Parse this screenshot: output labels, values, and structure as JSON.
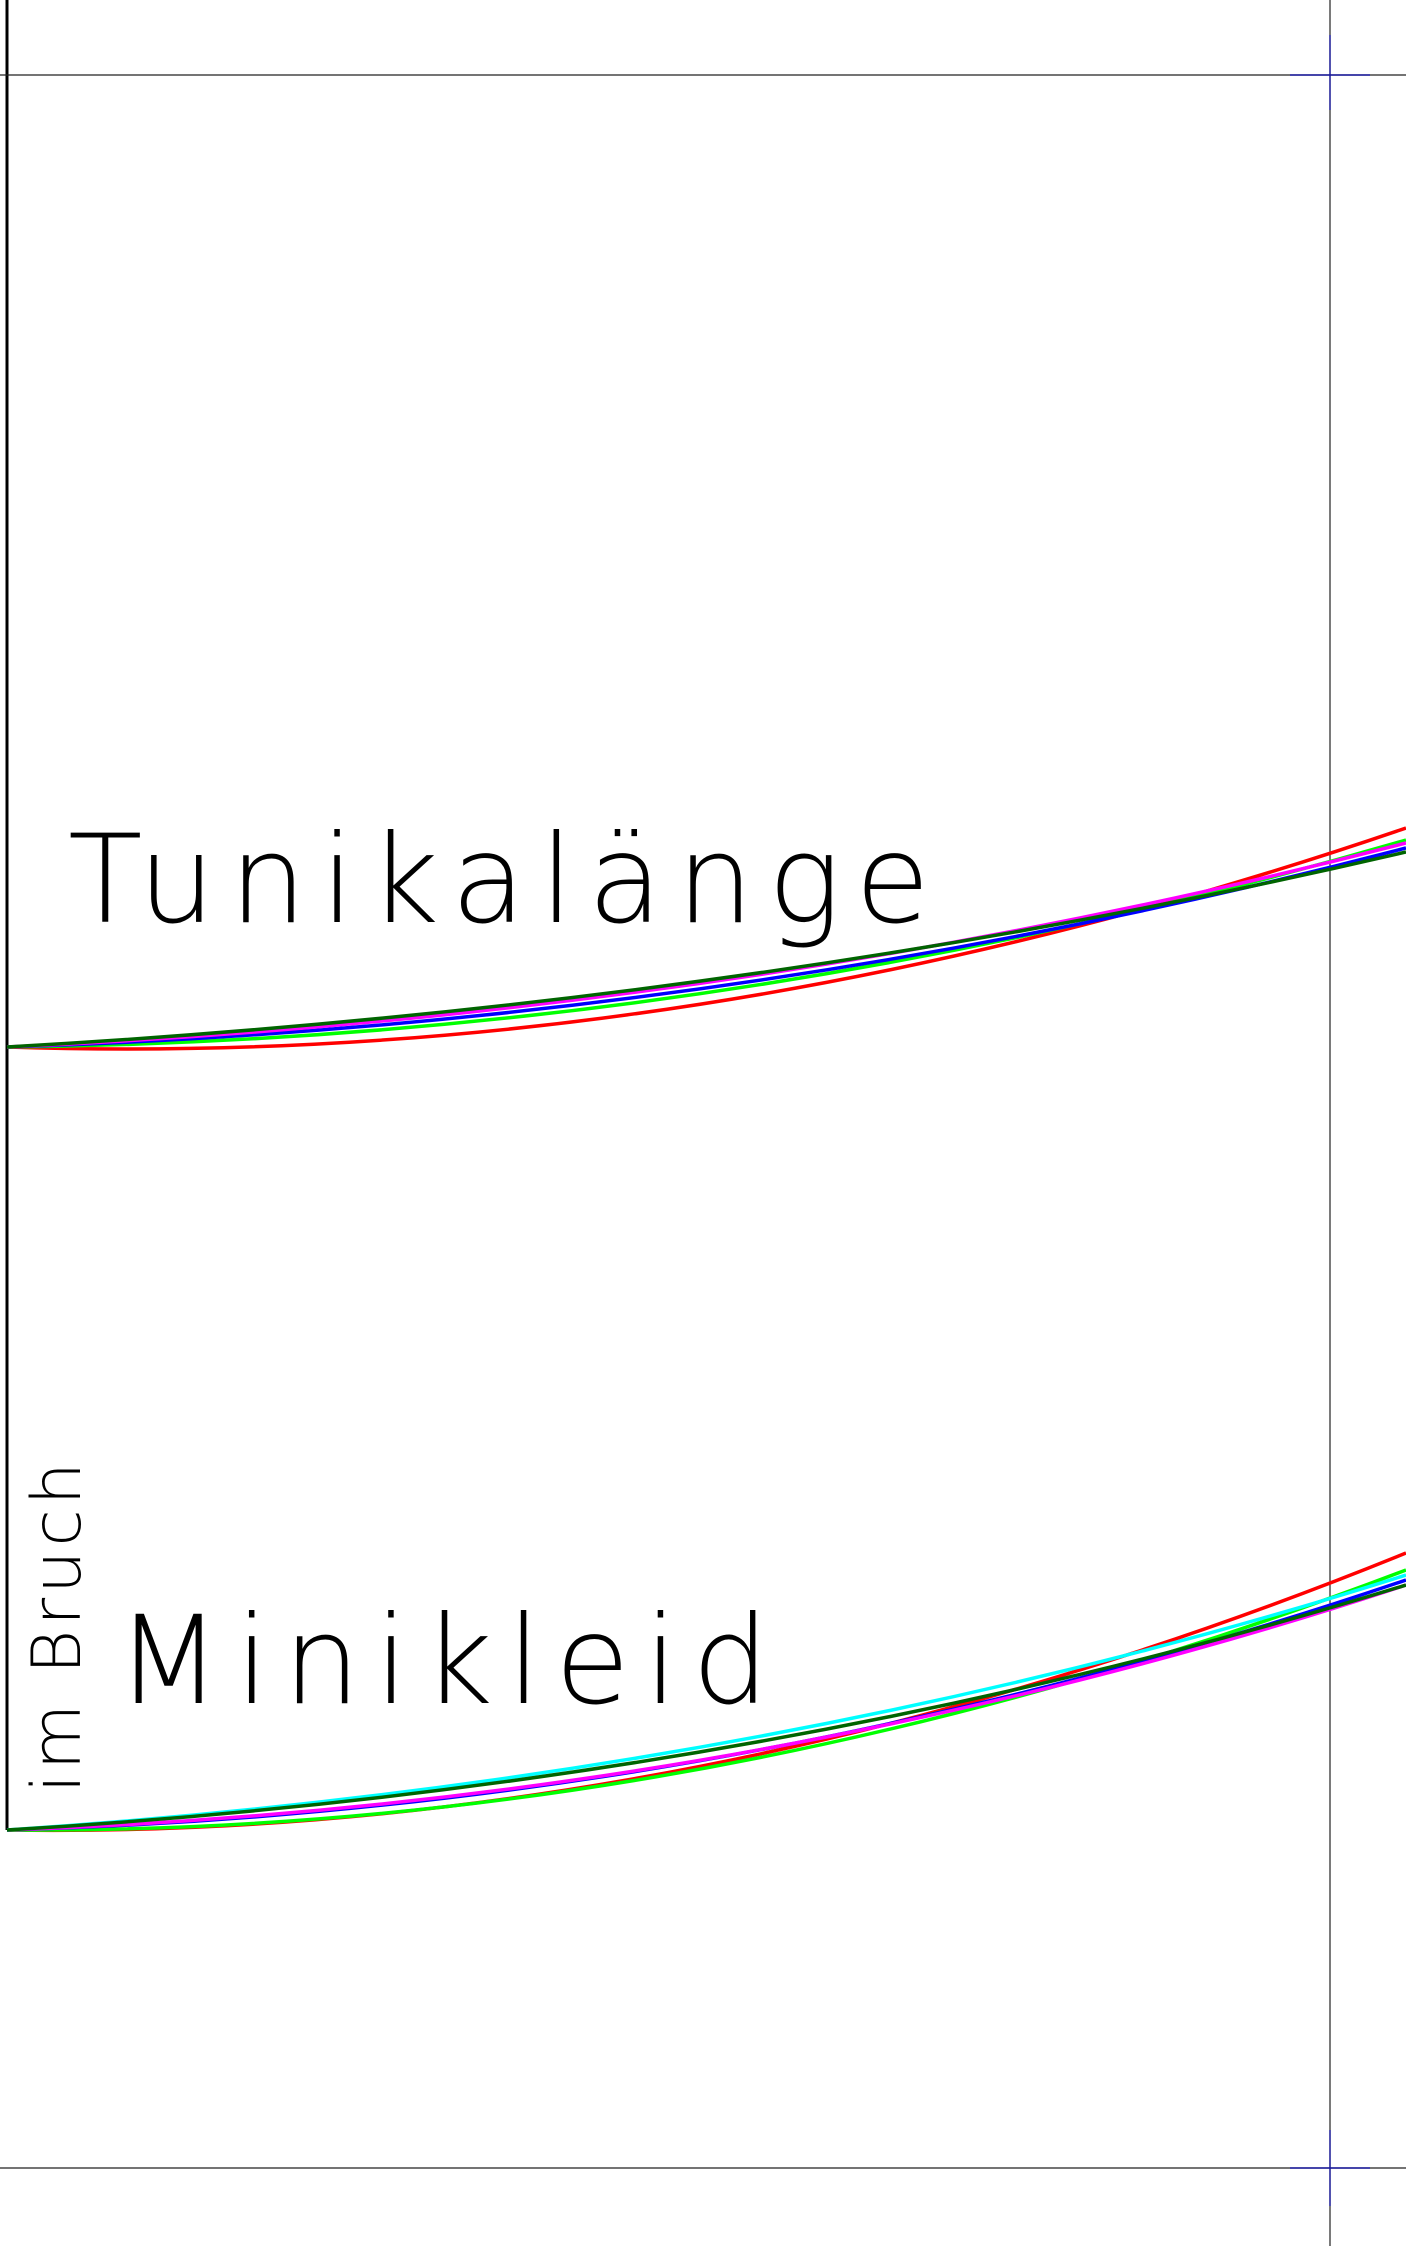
{
  "pattern": {
    "fold_label": "im Bruch",
    "hem_lines": [
      {
        "id": "tunic",
        "label": "Tunikalänge"
      },
      {
        "id": "mini",
        "label": "Minikleid"
      }
    ],
    "size_colors": [
      "#ff0000",
      "#00ff00",
      "#0000ff",
      "#ff00ff",
      "#00ffff",
      "#006400"
    ],
    "guide_color": "#00008b",
    "border_color": "#000000"
  }
}
